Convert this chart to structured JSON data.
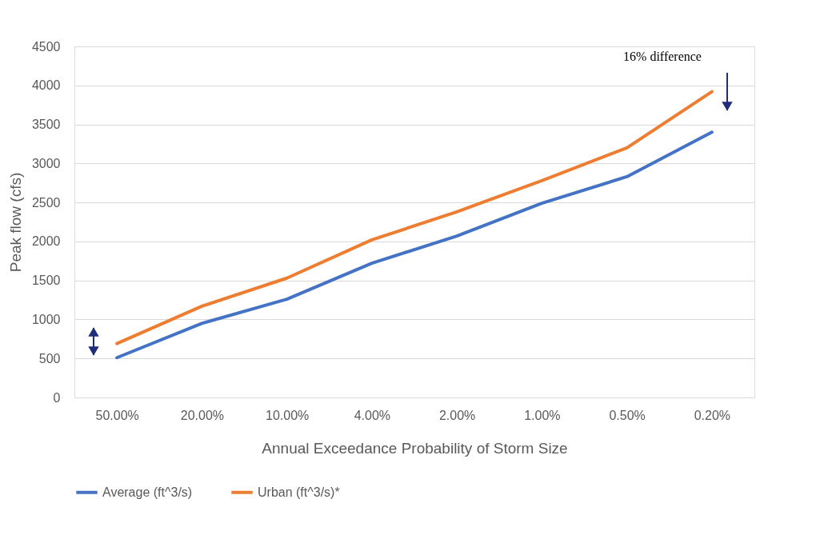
{
  "chart_data": {
    "type": "line",
    "xlabel": "Annual Exceedance Probability of Storm Size",
    "ylabel": "Peak flow (cfs)",
    "categories": [
      "50.00%",
      "20.00%",
      "10.00%",
      "4.00%",
      "2.00%",
      "1.00%",
      "0.50%",
      "0.20%"
    ],
    "series": [
      {
        "name": "Average (ft^3/s)",
        "color": "#4472c4",
        "values": [
          510,
          950,
          1260,
          1720,
          2070,
          2490,
          2830,
          3400
        ]
      },
      {
        "name": "Urban (ft^3/s)*",
        "color": "#ed7d31",
        "values": [
          690,
          1170,
          1530,
          2020,
          2380,
          2780,
          3200,
          3920
        ]
      }
    ],
    "ylim": [
      0,
      4500
    ],
    "yticks": [
      0,
      500,
      1000,
      1500,
      2000,
      2500,
      3000,
      3500,
      4000,
      4500
    ],
    "grid": "y",
    "legend": "bottom",
    "marker": "none",
    "line_style": "solid",
    "annotations": [
      "16% difference"
    ]
  }
}
